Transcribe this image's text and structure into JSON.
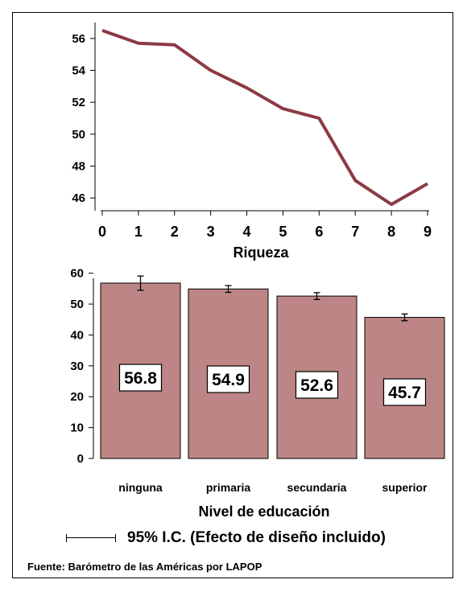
{
  "chart_data": [
    {
      "type": "line",
      "xlabel": "Riqueza",
      "ylabel": "",
      "x": [
        0,
        1,
        2,
        3,
        4,
        5,
        6,
        7,
        8,
        9
      ],
      "values": [
        56.5,
        55.7,
        55.6,
        54.0,
        52.9,
        51.6,
        51.0,
        47.1,
        45.6,
        46.9
      ],
      "xlim": [
        0,
        9
      ],
      "ylim": [
        45.2,
        57.0
      ],
      "yticks": [
        46,
        48,
        50,
        52,
        54,
        56
      ],
      "xticks": [
        0,
        1,
        2,
        3,
        4,
        5,
        6,
        7,
        8,
        9
      ],
      "color": "#8b3a44",
      "grid": false
    },
    {
      "type": "bar",
      "xlabel": "Nivel de educación",
      "ylabel": "",
      "categories": [
        "ninguna",
        "primaria",
        "secundaria",
        "superior"
      ],
      "values": [
        56.8,
        54.9,
        52.6,
        45.7
      ],
      "value_labels": [
        "56.8",
        "54.9",
        "52.6",
        "45.7"
      ],
      "ci_low": [
        54.5,
        53.8,
        51.5,
        44.6
      ],
      "ci_high": [
        59.1,
        56.0,
        53.7,
        46.8
      ],
      "ylim": [
        0,
        62
      ],
      "yticks": [
        0,
        10,
        20,
        30,
        40,
        50,
        60
      ],
      "bar_color": "#bd8585",
      "grid": false
    }
  ],
  "legend": {
    "ci_label": "95% I.C. (Efecto de diseño incluido)"
  },
  "source": "Fuente: Barómetro de las Américas por LAPOP"
}
